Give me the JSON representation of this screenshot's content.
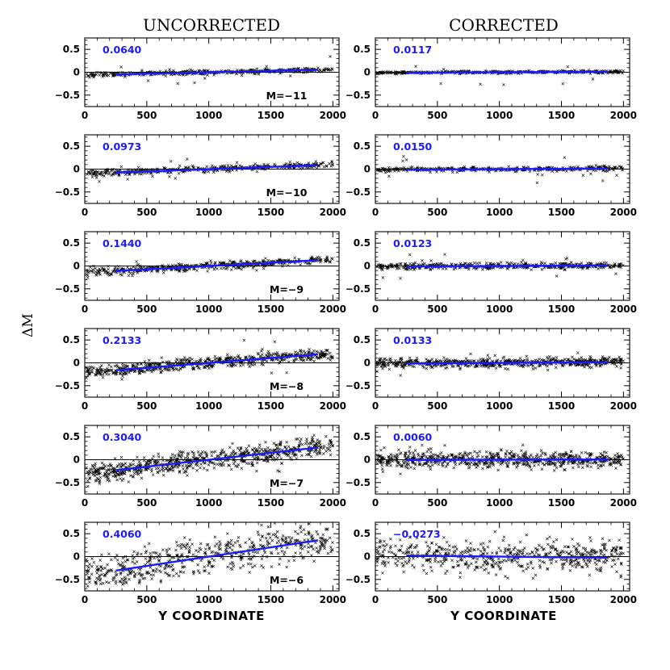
{
  "chart_data": {
    "type": "scatter",
    "figure": {
      "column_titles": [
        "UNCORRECTED",
        "CORRECTED"
      ],
      "xlabel": "Y COORDINATE",
      "ylabel": "ΔM",
      "xlim": [
        0,
        2050
      ],
      "ylim": [
        -0.75,
        0.75
      ],
      "xticks": [
        0,
        500,
        1000,
        1500,
        2000
      ],
      "yticks": [
        -0.5,
        0,
        0.5
      ],
      "ytick_labels": [
        "−0.5",
        "0",
        "0.5"
      ],
      "fit_color": "#1a1aff",
      "point_color": "#000000",
      "zero_line": 0,
      "fit_x_range": [
        250,
        1880
      ]
    },
    "panels": [
      {
        "row": 0,
        "col": 0,
        "mag_label": "M=−11",
        "slope_label": "0.0640",
        "slope": 0.064,
        "scatter": 0.025,
        "n_points": 380
      },
      {
        "row": 0,
        "col": 1,
        "mag_label": "",
        "slope_label": "0.0117",
        "slope": 0.0117,
        "scatter": 0.015,
        "n_points": 380
      },
      {
        "row": 1,
        "col": 0,
        "mag_label": "M=−10",
        "slope_label": "0.0973",
        "slope": 0.0973,
        "scatter": 0.035,
        "n_points": 380
      },
      {
        "row": 1,
        "col": 1,
        "mag_label": "",
        "slope_label": "0.0150",
        "slope": 0.015,
        "scatter": 0.025,
        "n_points": 380
      },
      {
        "row": 2,
        "col": 0,
        "mag_label": "M=−9",
        "slope_label": "0.1440",
        "slope": 0.144,
        "scatter": 0.045,
        "n_points": 450
      },
      {
        "row": 2,
        "col": 1,
        "mag_label": "",
        "slope_label": "0.0123",
        "slope": 0.0123,
        "scatter": 0.035,
        "n_points": 450
      },
      {
        "row": 3,
        "col": 0,
        "mag_label": "M=−8",
        "slope_label": "0.2133",
        "slope": 0.2133,
        "scatter": 0.065,
        "n_points": 600
      },
      {
        "row": 3,
        "col": 1,
        "mag_label": "",
        "slope_label": "0.0133",
        "slope": 0.0133,
        "scatter": 0.05,
        "n_points": 600
      },
      {
        "row": 4,
        "col": 0,
        "mag_label": "M=−7",
        "slope_label": "0.3040",
        "slope": 0.304,
        "scatter": 0.11,
        "n_points": 700
      },
      {
        "row": 4,
        "col": 1,
        "mag_label": "",
        "slope_label": "0.0060",
        "slope": 0.006,
        "scatter": 0.09,
        "n_points": 700
      },
      {
        "row": 5,
        "col": 0,
        "mag_label": "M=−6",
        "slope_label": "0.4060",
        "slope": 0.406,
        "scatter": 0.2,
        "n_points": 550
      },
      {
        "row": 5,
        "col": 1,
        "mag_label": "",
        "slope_label": "−0.0273",
        "slope": -0.0273,
        "scatter": 0.17,
        "n_points": 550
      }
    ]
  }
}
